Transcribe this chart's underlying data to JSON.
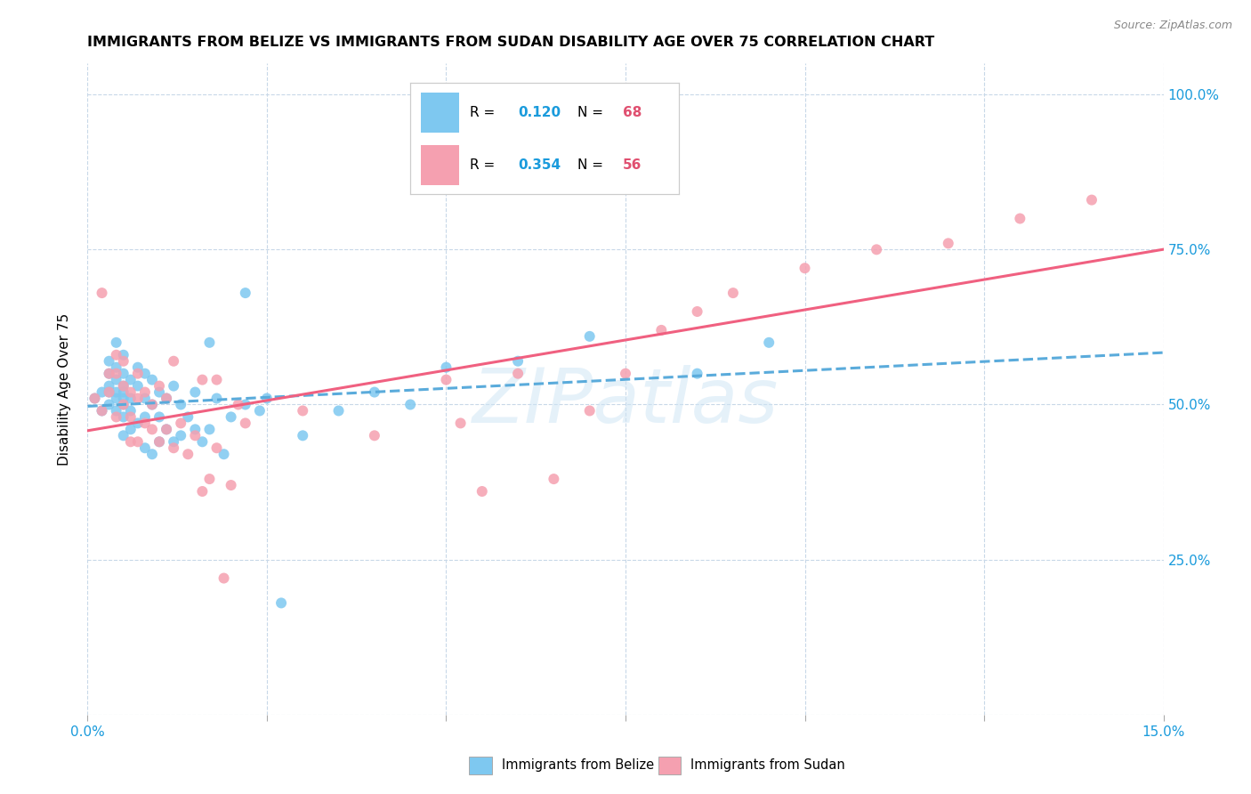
{
  "title": "IMMIGRANTS FROM BELIZE VS IMMIGRANTS FROM SUDAN DISABILITY AGE OVER 75 CORRELATION CHART",
  "source": "Source: ZipAtlas.com",
  "ylabel": "Disability Age Over 75",
  "xlim": [
    0.0,
    0.15
  ],
  "ylim": [
    0.0,
    1.05
  ],
  "xticks": [
    0.0,
    0.025,
    0.05,
    0.075,
    0.1,
    0.125,
    0.15
  ],
  "xticklabels": [
    "0.0%",
    "",
    "",
    "",
    "",
    "",
    "15.0%"
  ],
  "ytick_positions": [
    0.0,
    0.25,
    0.5,
    0.75,
    1.0
  ],
  "ytick_labels": [
    "",
    "25.0%",
    "50.0%",
    "75.0%",
    "100.0%"
  ],
  "belize_R": "0.120",
  "belize_N": "68",
  "sudan_R": "0.354",
  "sudan_N": "56",
  "belize_color": "#7ec8f0",
  "sudan_color": "#f5a0b0",
  "belize_line_color": "#5aabdb",
  "sudan_line_color": "#f06080",
  "r_color": "#1a9bdc",
  "n_color": "#e05070",
  "watermark": "ZIPatlas",
  "belize_x": [
    0.001,
    0.002,
    0.002,
    0.003,
    0.003,
    0.003,
    0.003,
    0.003,
    0.004,
    0.004,
    0.004,
    0.004,
    0.004,
    0.004,
    0.005,
    0.005,
    0.005,
    0.005,
    0.005,
    0.005,
    0.005,
    0.005,
    0.006,
    0.006,
    0.006,
    0.006,
    0.007,
    0.007,
    0.007,
    0.008,
    0.008,
    0.008,
    0.008,
    0.009,
    0.009,
    0.009,
    0.01,
    0.01,
    0.01,
    0.011,
    0.011,
    0.012,
    0.012,
    0.013,
    0.013,
    0.014,
    0.015,
    0.015,
    0.016,
    0.017,
    0.017,
    0.018,
    0.019,
    0.02,
    0.022,
    0.022,
    0.024,
    0.025,
    0.027,
    0.03,
    0.035,
    0.04,
    0.045,
    0.05,
    0.06,
    0.07,
    0.085,
    0.095
  ],
  "belize_y": [
    0.51,
    0.49,
    0.52,
    0.5,
    0.53,
    0.52,
    0.55,
    0.57,
    0.49,
    0.51,
    0.52,
    0.54,
    0.56,
    0.6,
    0.45,
    0.48,
    0.5,
    0.51,
    0.52,
    0.53,
    0.55,
    0.58,
    0.46,
    0.49,
    0.51,
    0.54,
    0.47,
    0.53,
    0.56,
    0.43,
    0.48,
    0.51,
    0.55,
    0.42,
    0.5,
    0.54,
    0.44,
    0.48,
    0.52,
    0.46,
    0.51,
    0.44,
    0.53,
    0.45,
    0.5,
    0.48,
    0.46,
    0.52,
    0.44,
    0.46,
    0.6,
    0.51,
    0.42,
    0.48,
    0.5,
    0.68,
    0.49,
    0.51,
    0.18,
    0.45,
    0.49,
    0.52,
    0.5,
    0.56,
    0.57,
    0.61,
    0.55,
    0.6
  ],
  "sudan_x": [
    0.001,
    0.002,
    0.002,
    0.003,
    0.003,
    0.004,
    0.004,
    0.004,
    0.005,
    0.005,
    0.005,
    0.006,
    0.006,
    0.006,
    0.007,
    0.007,
    0.007,
    0.008,
    0.008,
    0.009,
    0.009,
    0.01,
    0.01,
    0.011,
    0.011,
    0.012,
    0.012,
    0.013,
    0.014,
    0.015,
    0.016,
    0.016,
    0.017,
    0.018,
    0.018,
    0.019,
    0.02,
    0.021,
    0.022,
    0.03,
    0.04,
    0.05,
    0.052,
    0.055,
    0.06,
    0.065,
    0.07,
    0.075,
    0.08,
    0.085,
    0.09,
    0.1,
    0.11,
    0.12,
    0.13,
    0.14
  ],
  "sudan_y": [
    0.51,
    0.49,
    0.68,
    0.52,
    0.55,
    0.48,
    0.55,
    0.58,
    0.5,
    0.53,
    0.57,
    0.44,
    0.48,
    0.52,
    0.44,
    0.51,
    0.55,
    0.47,
    0.52,
    0.46,
    0.5,
    0.44,
    0.53,
    0.46,
    0.51,
    0.43,
    0.57,
    0.47,
    0.42,
    0.45,
    0.36,
    0.54,
    0.38,
    0.43,
    0.54,
    0.22,
    0.37,
    0.5,
    0.47,
    0.49,
    0.45,
    0.54,
    0.47,
    0.36,
    0.55,
    0.38,
    0.49,
    0.55,
    0.62,
    0.65,
    0.68,
    0.72,
    0.75,
    0.76,
    0.8,
    0.83
  ]
}
